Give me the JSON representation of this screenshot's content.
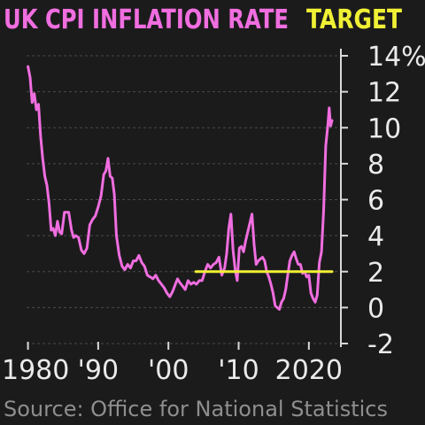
{
  "chart_data": {
    "type": "line",
    "title": "UK CPI INFLATION RATE",
    "legend_target": "TARGET",
    "source": "Source: Office for National Statistics",
    "xlim": [
      1979.8,
      2023.3
    ],
    "ylim": [
      -2,
      14
    ],
    "grid": true,
    "x_ticks": [
      {
        "value": 1980,
        "label": "1980"
      },
      {
        "value": 1990,
        "label": "'90"
      },
      {
        "value": 2000,
        "label": "'00"
      },
      {
        "value": 2010,
        "label": "'10"
      },
      {
        "value": 2020,
        "label": "2020"
      }
    ],
    "y_ticks": [
      {
        "value": 14,
        "label": "14%"
      },
      {
        "value": 12,
        "label": "12"
      },
      {
        "value": 10,
        "label": "10"
      },
      {
        "value": 8,
        "label": "8"
      },
      {
        "value": 6,
        "label": "6"
      },
      {
        "value": 4,
        "label": "4"
      },
      {
        "value": 2,
        "label": "2"
      },
      {
        "value": 0,
        "label": "0"
      },
      {
        "value": -2,
        "label": "-2"
      }
    ],
    "series": [
      {
        "color": "#f06ee0",
        "x": [
          1980.0,
          1980.3,
          1980.6,
          1980.9,
          1981.2,
          1981.5,
          1981.8,
          1982.1,
          1982.4,
          1982.7,
          1983.0,
          1983.3,
          1983.6,
          1983.9,
          1984.2,
          1984.5,
          1984.8,
          1985.2,
          1985.5,
          1985.8,
          1986.2,
          1986.5,
          1986.8,
          1987.2,
          1987.6,
          1988.0,
          1988.4,
          1988.8,
          1989.2,
          1989.6,
          1990.0,
          1990.4,
          1990.8,
          1991.1,
          1991.4,
          1991.7,
          1992.0,
          1992.3,
          1992.6,
          1993.0,
          1993.4,
          1993.8,
          1994.2,
          1994.6,
          1995.0,
          1995.4,
          1995.8,
          1996.2,
          1996.6,
          1997.0,
          1997.4,
          1997.8,
          1998.2,
          1998.6,
          1999.0,
          1999.4,
          1999.8,
          2000.2,
          2000.6,
          2001.0,
          2001.3,
          2001.6,
          2002.0,
          2002.4,
          2002.8,
          2003.2,
          2003.6,
          2004.0,
          2004.4,
          2004.8,
          2005.2,
          2005.6,
          2006.0,
          2006.4,
          2006.8,
          2007.2,
          2007.6,
          2008.0,
          2008.3,
          2008.6,
          2008.9,
          2009.2,
          2009.5,
          2009.8,
          2010.1,
          2010.4,
          2010.7,
          2011.0,
          2011.3,
          2011.6,
          2011.9,
          2012.2,
          2012.5,
          2012.8,
          2013.1,
          2013.4,
          2013.7,
          2014.0,
          2014.3,
          2014.6,
          2014.9,
          2015.2,
          2015.5,
          2015.8,
          2016.1,
          2016.4,
          2016.7,
          2017.0,
          2017.3,
          2017.6,
          2017.9,
          2018.2,
          2018.5,
          2018.8,
          2019.1,
          2019.4,
          2019.7,
          2020.0,
          2020.3,
          2020.6,
          2020.9,
          2021.2,
          2021.5,
          2021.8,
          2022.1,
          2022.4,
          2022.7,
          2022.9,
          2023.1,
          2023.3
        ],
        "y": [
          13.4,
          12.8,
          11.4,
          11.9,
          11.0,
          11.3,
          9.5,
          8.3,
          7.3,
          6.8,
          5.8,
          4.3,
          4.4,
          4.0,
          4.8,
          4.2,
          4.1,
          5.3,
          5.3,
          5.3,
          4.3,
          3.9,
          4.0,
          3.9,
          3.2,
          3.0,
          3.3,
          4.6,
          4.9,
          5.1,
          5.6,
          6.2,
          7.4,
          7.6,
          8.3,
          7.3,
          7.2,
          6.3,
          4.0,
          2.9,
          2.3,
          2.1,
          2.4,
          2.2,
          2.6,
          2.6,
          2.9,
          2.5,
          2.3,
          1.8,
          1.7,
          1.6,
          1.8,
          1.5,
          1.3,
          1.1,
          0.8,
          0.6,
          0.9,
          1.3,
          1.6,
          1.4,
          1.2,
          1.0,
          1.5,
          1.3,
          1.4,
          1.3,
          1.5,
          1.5,
          2.0,
          2.4,
          2.2,
          2.4,
          2.5,
          2.8,
          1.8,
          2.2,
          3.0,
          4.4,
          5.2,
          3.2,
          2.1,
          1.5,
          3.3,
          3.4,
          3.1,
          3.7,
          4.2,
          4.7,
          5.2,
          3.5,
          2.4,
          2.6,
          2.7,
          2.8,
          2.6,
          2.0,
          1.7,
          1.3,
          0.8,
          0.1,
          0.0,
          -0.1,
          0.3,
          0.5,
          1.0,
          1.8,
          2.6,
          2.9,
          3.1,
          2.7,
          2.4,
          2.4,
          1.9,
          2.0,
          1.7,
          1.8,
          0.8,
          0.5,
          0.3,
          0.7,
          2.5,
          3.1,
          5.4,
          9.0,
          10.1,
          11.1,
          10.1,
          10.4
        ],
        "line_width": 3
      },
      {
        "color": "#f0f035",
        "x": [
          2003.9,
          2023.3
        ],
        "y": [
          2,
          2
        ],
        "line_width": 3
      }
    ]
  }
}
